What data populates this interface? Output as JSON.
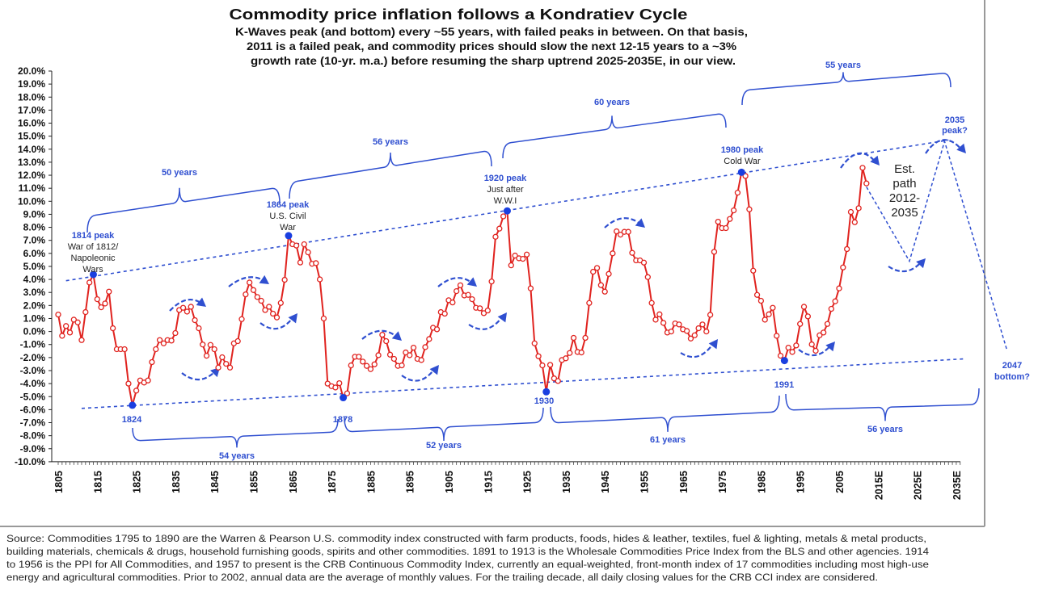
{
  "chart_data": {
    "type": "line",
    "title": "Commodity price inflation follows a Kondratiev Cycle",
    "subtitle_lines": [
      "K-Waves peak (and bottom) every ~55 years, with failed peaks in between. On that basis,",
      "2011 is a failed peak, and commodity prices should slow the next 12-15 years to a ~3%",
      "growth rate (10-yr. m.a.) before resuming the sharp uptrend 2025-2035E, in our view."
    ],
    "xlabel": "",
    "ylabel": "",
    "xlim": [
      1805,
      2035
    ],
    "ylim": [
      -10,
      20
    ],
    "grid": false,
    "legend": "none",
    "x_tick_values": [
      1805,
      1815,
      1825,
      1835,
      1845,
      1855,
      1865,
      1875,
      1885,
      1895,
      1905,
      1915,
      1925,
      1935,
      1945,
      1955,
      1965,
      1975,
      1985,
      1995,
      2005,
      2015,
      2025,
      2035
    ],
    "x_tick_labels": [
      "1805",
      "1815",
      "1825",
      "1835",
      "1845",
      "1855",
      "1865",
      "1875",
      "1885",
      "1895",
      "1905",
      "1915",
      "1925",
      "1935",
      "1945",
      "1955",
      "1965",
      "1975",
      "1985",
      "1995",
      "2005",
      "2015E",
      "2025E",
      "2035E"
    ],
    "y_tick_values": [
      20,
      19,
      18,
      17,
      16,
      15,
      14,
      13,
      12,
      11,
      10,
      9,
      8,
      7,
      6,
      5,
      4,
      3,
      2,
      1,
      0,
      -1,
      -2,
      -3,
      -4,
      -5,
      -6,
      -7,
      -8,
      -9,
      -10
    ],
    "y_tick_labels": [
      "20.0%",
      "19.0%",
      "18.0%",
      "17.0%",
      "16.0%",
      "15.0%",
      "14.0%",
      "13.0%",
      "12.0%",
      "11.0%",
      "10.0%",
      "9.0%",
      "8.0%",
      "7.0%",
      "6.0%",
      "5.0%",
      "4.0%",
      "3.0%",
      "2.0%",
      "1.0%",
      "0.0%",
      "-1.0%",
      "-2.0%",
      "-3.0%",
      "-4.0%",
      "-5.0%",
      "-6.0%",
      "-7.0%",
      "-8.0%",
      "-9.0%",
      "-10.0%"
    ],
    "series": [
      {
        "x": [
          1805,
          1806,
          1807,
          1808,
          1809,
          1810,
          1811,
          1812,
          1813,
          1814,
          1815,
          1816,
          1817,
          1818,
          1819,
          1820,
          1821,
          1822,
          1823,
          1824,
          1825,
          1826,
          1827,
          1828,
          1829,
          1830,
          1831,
          1832,
          1833,
          1834,
          1835,
          1836,
          1837,
          1838,
          1839,
          1840,
          1841,
          1842,
          1843,
          1844,
          1845,
          1846,
          1847,
          1848,
          1849,
          1850,
          1851,
          1852,
          1853,
          1854,
          1855,
          1856,
          1857,
          1858,
          1859,
          1860,
          1861,
          1862,
          1863,
          1864,
          1865,
          1866,
          1867,
          1868,
          1869,
          1870,
          1871,
          1872,
          1873,
          1874,
          1875,
          1876,
          1877,
          1878,
          1879,
          1880,
          1881,
          1882,
          1883,
          1884,
          1885,
          1886,
          1887,
          1888,
          1889,
          1890,
          1891,
          1892,
          1893,
          1894,
          1895,
          1896,
          1897,
          1898,
          1899,
          1900,
          1901,
          1902,
          1903,
          1904,
          1905,
          1906,
          1907,
          1908,
          1909,
          1910,
          1911,
          1912,
          1913,
          1914,
          1915,
          1916,
          1917,
          1918,
          1919,
          1920,
          1921,
          1922,
          1923,
          1924,
          1925,
          1926,
          1927,
          1928,
          1929,
          1930,
          1931,
          1932,
          1933,
          1934,
          1935,
          1936,
          1937,
          1938,
          1939,
          1940,
          1941,
          1942,
          1943,
          1944,
          1945,
          1946,
          1947,
          1948,
          1949,
          1950,
          1951,
          1952,
          1953,
          1954,
          1955,
          1956,
          1957,
          1958,
          1959,
          1960,
          1961,
          1962,
          1963,
          1964,
          1965,
          1966,
          1967,
          1968,
          1969,
          1970,
          1971,
          1972,
          1973,
          1974,
          1975,
          1976,
          1977,
          1978,
          1979,
          1980,
          1981,
          1982,
          1983,
          1984,
          1985,
          1986,
          1987,
          1988,
          1989,
          1990,
          1991,
          1992,
          1993,
          1994,
          1995,
          1996,
          1997,
          1998,
          1999,
          2000,
          2001,
          2002,
          2003,
          2004,
          2005,
          2006,
          2007,
          2008,
          2009,
          2010,
          2011,
          2012
        ],
        "values": [
          1.3,
          -0.33,
          0.42,
          -0.08,
          0.91,
          0.7,
          -0.66,
          1.49,
          3.76,
          4.38,
          2.48,
          1.86,
          2.15,
          3.06,
          0.25,
          -1.36,
          -1.36,
          -1.36,
          -4.0,
          -5.66,
          -4.54,
          -3.76,
          -3.92,
          -3.76,
          -2.35,
          -1.36,
          -0.66,
          -0.91,
          -0.66,
          -0.7,
          -0.12,
          1.65,
          1.82,
          1.53,
          1.9,
          0.87,
          0.25,
          -1.0,
          -1.86,
          -1.03,
          -1.36,
          -2.77,
          -1.98,
          -2.48,
          -2.77,
          -0.91,
          -0.74,
          0.95,
          2.85,
          3.76,
          3.18,
          2.65,
          2.36,
          1.65,
          1.9,
          1.37,
          1.08,
          2.19,
          3.97,
          7.36,
          6.7,
          6.6,
          5.3,
          6.7,
          6.08,
          5.2,
          5.25,
          4.0,
          1.0,
          -4.0,
          -4.2,
          -4.3,
          -3.97,
          -5.08,
          -4.75,
          -2.6,
          -1.94,
          -1.94,
          -2.31,
          -2.64,
          -2.89,
          -2.52,
          -1.82,
          -0.25,
          -0.74,
          -1.78,
          -2.1,
          -2.64,
          -2.6,
          -1.61,
          -1.82,
          -1.24,
          -2.1,
          -2.19,
          -1.2,
          -0.58,
          0.29,
          0.17,
          1.49,
          1.37,
          2.4,
          2.23,
          3.1,
          3.55,
          2.77,
          2.81,
          2.48,
          1.82,
          1.78,
          1.41,
          1.61,
          3.84,
          7.27,
          7.9,
          8.84,
          9.26,
          5.08,
          5.83,
          5.62,
          5.58,
          5.91,
          3.31,
          -0.91,
          -1.9,
          -2.6,
          -4.63,
          -2.56,
          -3.6,
          -3.8,
          -2.19,
          -2.06,
          -1.65,
          -0.49,
          -1.57,
          -1.61,
          -0.49,
          2.19,
          4.59,
          4.88,
          3.56,
          3.06,
          4.42,
          6.0,
          7.69,
          7.44,
          7.65,
          7.65,
          6.04,
          5.46,
          5.46,
          5.29,
          4.18,
          2.19,
          0.91,
          1.32,
          0.66,
          -0.08,
          0.0,
          0.62,
          0.54,
          0.17,
          0.04,
          -0.54,
          -0.29,
          0.25,
          0.54,
          0.0,
          1.28,
          6.12,
          8.43,
          7.94,
          7.94,
          8.64,
          9.3,
          10.66,
          12.23,
          11.94,
          9.38,
          4.67,
          2.81,
          2.36,
          0.91,
          1.32,
          1.82,
          -0.33,
          -1.86,
          -2.23,
          -1.24,
          -1.57,
          -1.07,
          0.58,
          1.9,
          1.16,
          -0.99,
          -1.48,
          -0.29,
          -0.08,
          0.58,
          1.74,
          2.32,
          3.31,
          4.92,
          6.33,
          9.18,
          8.39,
          9.47,
          12.57,
          11.37
        ]
      }
    ],
    "highlighted_points": [
      {
        "year": 1814,
        "value": 4.38,
        "label": "1814 peak",
        "note": [
          "War of 1812/",
          "Napoleonic",
          "Wars"
        ]
      },
      {
        "year": 1824,
        "value": -5.66,
        "label": "1824",
        "note": []
      },
      {
        "year": 1864,
        "value": 7.36,
        "label": "1864 peak",
        "note": [
          "U.S. Civil",
          "War"
        ]
      },
      {
        "year": 1878,
        "value": -5.08,
        "label": "1878",
        "note": []
      },
      {
        "year": 1920,
        "value": 9.26,
        "label": "1920 peak",
        "note": [
          "Just after",
          "W.W.I"
        ]
      },
      {
        "year": 1930,
        "value": -4.63,
        "label": "1930",
        "note": []
      },
      {
        "year": 1980,
        "value": 12.23,
        "label": "1980 peak",
        "note": [
          "Cold War"
        ]
      },
      {
        "year": 1991,
        "value": -2.23,
        "label": "1991",
        "note": []
      }
    ],
    "trend_lines": {
      "upper": [
        [
          1807,
          3.9
        ],
        [
          2033,
          14.7
        ]
      ],
      "lower": [
        [
          1811,
          -5.9
        ],
        [
          2037,
          -2.1
        ]
      ]
    },
    "estimated_path": {
      "label": [
        "Est.",
        "path",
        "2012-",
        "2035"
      ],
      "points": [
        [
          2012,
          11.1
        ],
        [
          2023,
          5.4
        ],
        [
          2032,
          14.6
        ],
        [
          2048,
          -1.45
        ]
      ]
    },
    "forecast_labels": {
      "peak": [
        "2035",
        "peak?"
      ],
      "bottom": [
        "2047",
        "bottom?"
      ]
    },
    "cycle_spans_top": [
      {
        "from": 1814,
        "to": 1864,
        "label": "50 years"
      },
      {
        "from": 1864,
        "to": 1920,
        "label": "56 years"
      },
      {
        "from": 1920,
        "to": 1980,
        "label": "60 years"
      },
      {
        "from": 1980,
        "to": 2035,
        "label": "55 years"
      }
    ],
    "cycle_spans_bottom": [
      {
        "from": 1824,
        "to": 1878,
        "label": "54 years"
      },
      {
        "from": 1878,
        "to": 1930,
        "label": "52 years"
      },
      {
        "from": 1930,
        "to": 1991,
        "label": "61 years"
      },
      {
        "from": 1991,
        "to": 2047,
        "label": "56 years"
      }
    ],
    "colors": {
      "series": "#e0231f",
      "annotation": "#2f4fd0",
      "text": "#111111"
    }
  },
  "source_lines": [
    "Source: Commodities 1795 to 1890 are the Warren & Pearson U.S. commodity index constructed with farm products, foods, hides & leather, textiles, fuel & lighting, metals & metal products,",
    "building materials, chemicals & drugs, household furnishing goods, spirits and other commodities. 1891 to 1913 is the Wholesale Commodities Price Index from the BLS and other agencies. 1914",
    "to 1956 is the PPI for All Commodities, and 1957 to present is the CRB Continuous Commodity Index, currently an equal-weighted, front-month index of 17 commodities including most high-use",
    "energy and agricultural commodities. Prior to 2002, annual data are the average of monthly values. For the trailing decade, all daily closing values for the CRB CCI index are considered."
  ]
}
